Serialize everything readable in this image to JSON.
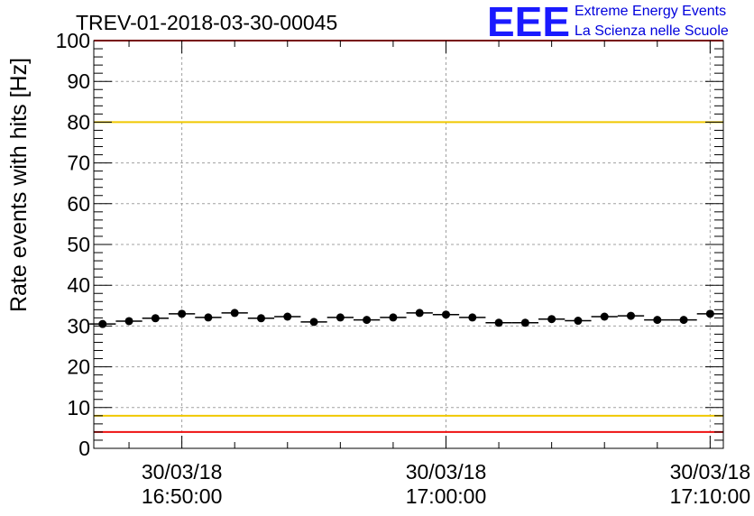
{
  "header": {
    "title": "TREV-01-2018-03-30-00045",
    "logo_text": "EEE",
    "logo_line1": "Extreme Energy Events",
    "logo_line2": "La Scienza nelle Scuole"
  },
  "chart_data": {
    "type": "scatter",
    "title": "TREV-01-2018-03-30-00045",
    "ylabel": "Rate events with hits [Hz]",
    "xlabel": "",
    "ylim": [
      0,
      100
    ],
    "xlim": [
      "16:46:40",
      "17:10:30"
    ],
    "grid": true,
    "yticks": [
      0,
      10,
      20,
      30,
      40,
      50,
      60,
      70,
      80,
      90,
      100
    ],
    "xticks": [
      {
        "time": "16:50:00",
        "date": "30/03/18",
        "time_label": "16:50:00"
      },
      {
        "time": "17:00:00",
        "date": "30/03/18",
        "time_label": "17:00:00"
      },
      {
        "time": "17:10:00",
        "date": "30/03/18",
        "time_label": "17:10:00"
      }
    ],
    "reference_lines": [
      {
        "value": 100,
        "color": "#ee1111"
      },
      {
        "value": 80,
        "color": "#f0c800"
      },
      {
        "value": 8,
        "color": "#f0c800"
      },
      {
        "value": 4,
        "color": "#ee1111"
      }
    ],
    "series": [
      {
        "marker_color": "#000000",
        "x": [
          "16:47:00",
          "16:48:00",
          "16:49:00",
          "16:50:00",
          "16:51:00",
          "16:52:00",
          "16:53:00",
          "16:54:00",
          "16:55:00",
          "16:56:00",
          "16:57:00",
          "16:58:00",
          "16:59:00",
          "17:00:00",
          "17:01:00",
          "17:02:00",
          "17:03:00",
          "17:04:00",
          "17:05:00",
          "17:06:00",
          "17:07:00",
          "17:08:00",
          "17:09:00",
          "17:10:00"
        ],
        "y": [
          30.5,
          31.2,
          31.9,
          33.0,
          32.1,
          33.2,
          31.9,
          32.3,
          31.0,
          32.1,
          31.5,
          32.1,
          33.2,
          32.8,
          32.1,
          30.8,
          30.8,
          31.7,
          31.3,
          32.3,
          32.5,
          31.5,
          31.5,
          33.0
        ],
        "xerr_minutes": 0.5,
        "yerr": 0.4
      }
    ]
  }
}
